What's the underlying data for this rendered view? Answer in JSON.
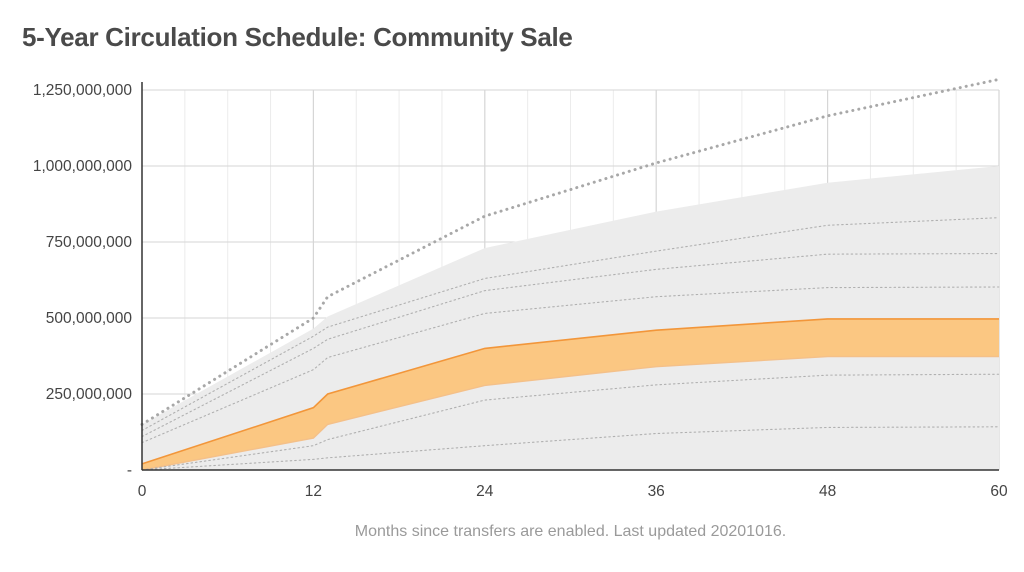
{
  "chart_data": {
    "type": "area",
    "title": "5-Year Circulation Schedule: Community Sale",
    "caption": "Months since transfers are enabled. Last updated 20201016.",
    "xlabel": "",
    "ylabel": "",
    "xlim": [
      0,
      60
    ],
    "ylim": [
      0,
      1250000000
    ],
    "x_ticks": [
      0,
      12,
      24,
      36,
      48,
      60
    ],
    "x_tick_labels": [
      "0",
      "12",
      "24",
      "36",
      "48",
      "60"
    ],
    "y_ticks": [
      0,
      250000000,
      500000000,
      750000000,
      1000000000,
      1250000000
    ],
    "y_tick_labels": [
      "-",
      "250,000,000",
      "500,000,000",
      "750,000,000",
      "1,000,000,000",
      "1,250,000,000"
    ],
    "grid": true,
    "colors": {
      "community_fill": "#fcc57c",
      "community_line": "#f2963a",
      "community_lower_line": "#f4c089",
      "background_fill": "#ececec",
      "dotted": "#b0b0b0",
      "total_dotted": "#a8a8a8",
      "grid": "#d6d6d6",
      "axis": "#333333"
    },
    "series": [
      {
        "name": "",
        "role": "background-band",
        "x": [
          0,
          12,
          13,
          24,
          36,
          48,
          60
        ],
        "upper": [
          150000000,
          465000000,
          505000000,
          730000000,
          850000000,
          945000000,
          1000000000
        ],
        "lower": [
          0,
          0,
          0,
          0,
          0,
          0,
          0
        ]
      },
      {
        "name": "",
        "role": "highlight-band",
        "x": [
          0,
          12,
          13,
          24,
          36,
          48,
          60
        ],
        "upper": [
          20000000,
          205000000,
          250000000,
          400000000,
          460000000,
          497000000,
          497000000
        ],
        "lower": [
          0,
          105000000,
          150000000,
          278000000,
          340000000,
          373000000,
          373000000
        ]
      },
      {
        "name": "",
        "role": "total-dotted",
        "x": [
          0,
          12,
          13,
          24,
          36,
          48,
          60
        ],
        "y": [
          150000000,
          500000000,
          570000000,
          835000000,
          1010000000,
          1165000000,
          1285000000
        ]
      },
      {
        "name": "",
        "role": "inner-dotted",
        "x": [
          0,
          12,
          13,
          24,
          36,
          48,
          60
        ],
        "y": [
          130000000,
          440000000,
          470000000,
          630000000,
          720000000,
          805000000,
          830000000
        ]
      },
      {
        "name": "",
        "role": "inner-dotted",
        "x": [
          0,
          12,
          13,
          24,
          36,
          48,
          60
        ],
        "y": [
          110000000,
          400000000,
          430000000,
          590000000,
          660000000,
          710000000,
          712000000
        ]
      },
      {
        "name": "",
        "role": "inner-dotted",
        "x": [
          0,
          12,
          13,
          24,
          36,
          48,
          60
        ],
        "y": [
          90000000,
          330000000,
          370000000,
          515000000,
          570000000,
          600000000,
          602000000
        ]
      },
      {
        "name": "",
        "role": "inner-dotted",
        "x": [
          0,
          12,
          13,
          24,
          36,
          48,
          60
        ],
        "y": [
          0,
          80000000,
          100000000,
          230000000,
          280000000,
          312000000,
          315000000
        ]
      },
      {
        "name": "",
        "role": "inner-dotted",
        "x": [
          0,
          12,
          13,
          24,
          36,
          48,
          60
        ],
        "y": [
          0,
          35000000,
          40000000,
          80000000,
          120000000,
          140000000,
          142000000
        ]
      }
    ]
  }
}
